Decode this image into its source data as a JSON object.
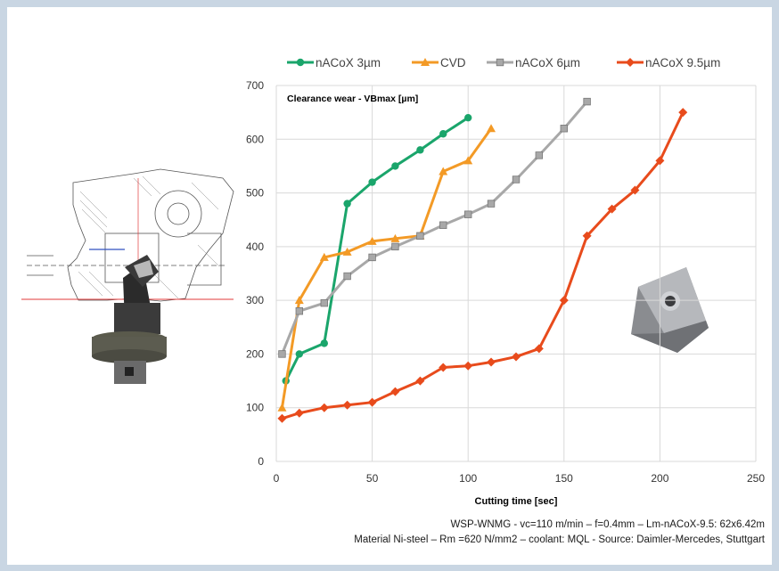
{
  "chart_data": {
    "type": "line",
    "title": "Clearance wear - VBmax [µm]",
    "xlabel": "Cutting time [sec]",
    "ylabel": "",
    "xlim": [
      0,
      250
    ],
    "ylim": [
      0,
      700
    ],
    "xticks": [
      "0",
      "50",
      "100",
      "150",
      "200",
      "250"
    ],
    "yticks": [
      "0",
      "100",
      "200",
      "300",
      "400",
      "500",
      "600",
      "700"
    ],
    "grid": true,
    "legend_position": "top",
    "series": [
      {
        "name": "nACoX 3µm",
        "color": "#1aa56b",
        "marker": "circle",
        "x": [
          5,
          12,
          25,
          37,
          50,
          62,
          75,
          87,
          100
        ],
        "y": [
          150,
          200,
          220,
          480,
          520,
          550,
          580,
          610,
          640
        ]
      },
      {
        "name": "CVD",
        "color": "#f39a26",
        "marker": "triangle",
        "x": [
          3,
          12,
          25,
          37,
          50,
          62,
          75,
          87,
          100,
          112
        ],
        "y": [
          100,
          300,
          380,
          390,
          410,
          415,
          420,
          540,
          560,
          620
        ]
      },
      {
        "name": "nACoX 6µm",
        "color": "#a8a8a8",
        "marker": "square",
        "x": [
          3,
          12,
          25,
          37,
          50,
          62,
          75,
          87,
          100,
          112,
          125,
          137,
          150,
          162
        ],
        "y": [
          200,
          280,
          295,
          345,
          380,
          400,
          420,
          440,
          460,
          480,
          525,
          570,
          620,
          670
        ]
      },
      {
        "name": "nACoX 9.5µm",
        "color": "#e84b1c",
        "marker": "diamond",
        "x": [
          3,
          12,
          25,
          37,
          50,
          62,
          75,
          87,
          100,
          112,
          125,
          137,
          150,
          162,
          175,
          187,
          200,
          212
        ],
        "y": [
          80,
          90,
          100,
          105,
          110,
          130,
          150,
          175,
          178,
          185,
          195,
          210,
          300,
          420,
          470,
          505,
          560,
          650
        ]
      }
    ]
  },
  "footer": {
    "line1": "WSP-WNMG - vc=110 m/min – f=0.4mm – Lm-nACoX-9.5: 62x6.42m",
    "line2": "Material Ni-steel – Rm =620 N/mm2 – coolant: MQL - Source: Daimler-Mercedes, Stuttgart"
  },
  "colors": {
    "background": "#c9d6e3",
    "panel": "#ffffff",
    "grid": "#d9d9d9"
  },
  "images": {
    "tool_drawing": "boring-tool-with-cross-section-drawing",
    "insert": "trigon-carbide-insert"
  }
}
